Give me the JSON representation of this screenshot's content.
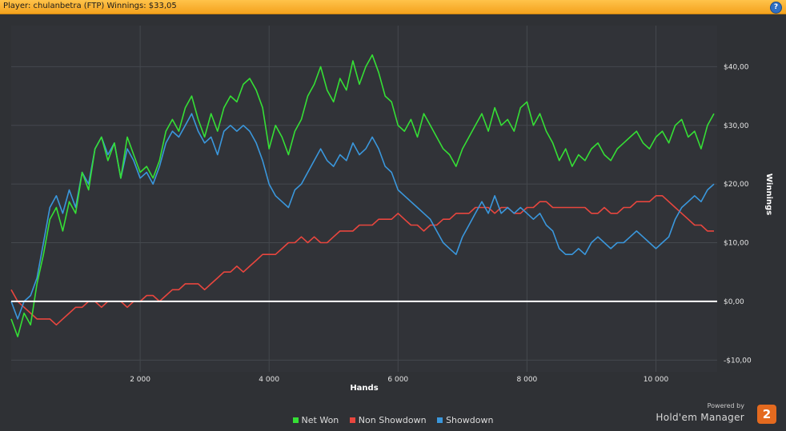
{
  "header": {
    "title": "Player: chulanbetra (FTP) Winnings: $33,05",
    "help_label": "?"
  },
  "branding": {
    "powered_by": "Powered by",
    "product": "Hold'em Manager",
    "logo_text": "2"
  },
  "chart_data": {
    "type": "line",
    "title": "",
    "xlabel": "Hands",
    "ylabel": "Winnings",
    "xlim": [
      0,
      10950
    ],
    "ylim": [
      -12,
      47
    ],
    "x_ticks": [
      2000,
      4000,
      6000,
      8000,
      10000
    ],
    "x_tick_labels": [
      "2 000",
      "4 000",
      "6 000",
      "8 000",
      "10 000"
    ],
    "y_ticks": [
      -10,
      0,
      10,
      20,
      30,
      40
    ],
    "y_tick_labels": [
      "-$10,00",
      "$0,00",
      "$10,00",
      "$20,00",
      "$30,00",
      "$40,00"
    ],
    "grid": true,
    "legend_position": "bottom",
    "zero_line_color": "#ffffff",
    "series": [
      {
        "name": "Net Won",
        "color": "#35df35",
        "x": [
          0,
          100,
          200,
          300,
          400,
          500,
          600,
          700,
          800,
          900,
          1000,
          1100,
          1200,
          1300,
          1400,
          1500,
          1600,
          1700,
          1800,
          1900,
          2000,
          2100,
          2200,
          2300,
          2400,
          2500,
          2600,
          2700,
          2800,
          2900,
          3000,
          3100,
          3200,
          3300,
          3400,
          3500,
          3600,
          3700,
          3800,
          3900,
          4000,
          4100,
          4200,
          4300,
          4400,
          4500,
          4600,
          4700,
          4800,
          4900,
          5000,
          5100,
          5200,
          5300,
          5400,
          5500,
          5600,
          5700,
          5800,
          5900,
          6000,
          6100,
          6200,
          6300,
          6400,
          6500,
          6600,
          6700,
          6800,
          6900,
          7000,
          7100,
          7200,
          7300,
          7400,
          7500,
          7600,
          7700,
          7800,
          7900,
          8000,
          8100,
          8200,
          8300,
          8400,
          8500,
          8600,
          8700,
          8800,
          8900,
          9000,
          9100,
          9200,
          9300,
          9400,
          9500,
          9600,
          9700,
          9800,
          9900,
          10000,
          10100,
          10200,
          10300,
          10400,
          10500,
          10600,
          10700,
          10800,
          10900
        ],
        "y": [
          -3,
          -6,
          -2,
          -4,
          3,
          8,
          14,
          16,
          12,
          17,
          15,
          22,
          19,
          26,
          28,
          24,
          27,
          21,
          28,
          25,
          22,
          23,
          21,
          24,
          29,
          31,
          29,
          33,
          35,
          31,
          28,
          32,
          29,
          33,
          35,
          34,
          37,
          38,
          36,
          33,
          26,
          30,
          28,
          25,
          29,
          31,
          35,
          37,
          40,
          36,
          34,
          38,
          36,
          41,
          37,
          40,
          42,
          39,
          35,
          34,
          30,
          29,
          31,
          28,
          32,
          30,
          28,
          26,
          25,
          23,
          26,
          28,
          30,
          32,
          29,
          33,
          30,
          31,
          29,
          33,
          34,
          30,
          32,
          29,
          27,
          24,
          26,
          23,
          25,
          24,
          26,
          27,
          25,
          24,
          26,
          27,
          28,
          29,
          27,
          26,
          28,
          29,
          27,
          30,
          31,
          28,
          29,
          26,
          30,
          32
        ]
      },
      {
        "name": "Non Showdown",
        "color": "#e8463e",
        "x": [
          0,
          100,
          200,
          300,
          400,
          500,
          600,
          700,
          800,
          900,
          1000,
          1100,
          1200,
          1300,
          1400,
          1500,
          1600,
          1700,
          1800,
          1900,
          2000,
          2100,
          2200,
          2300,
          2400,
          2500,
          2600,
          2700,
          2800,
          2900,
          3000,
          3100,
          3200,
          3300,
          3400,
          3500,
          3600,
          3700,
          3800,
          3900,
          4000,
          4100,
          4200,
          4300,
          4400,
          4500,
          4600,
          4700,
          4800,
          4900,
          5000,
          5100,
          5200,
          5300,
          5400,
          5500,
          5600,
          5700,
          5800,
          5900,
          6000,
          6100,
          6200,
          6300,
          6400,
          6500,
          6600,
          6700,
          6800,
          6900,
          7000,
          7100,
          7200,
          7300,
          7400,
          7500,
          7600,
          7700,
          7800,
          7900,
          8000,
          8100,
          8200,
          8300,
          8400,
          8500,
          8600,
          8700,
          8800,
          8900,
          9000,
          9100,
          9200,
          9300,
          9400,
          9500,
          9600,
          9700,
          9800,
          9900,
          10000,
          10100,
          10200,
          10300,
          10400,
          10500,
          10600,
          10700,
          10800,
          10900
        ],
        "y": [
          2,
          0,
          -1,
          -2,
          -3,
          -3,
          -3,
          -4,
          -3,
          -2,
          -1,
          -1,
          0,
          0,
          -1,
          0,
          0,
          0,
          -1,
          0,
          0,
          1,
          1,
          0,
          1,
          2,
          2,
          3,
          3,
          3,
          2,
          3,
          4,
          5,
          5,
          6,
          5,
          6,
          7,
          8,
          8,
          8,
          9,
          10,
          10,
          11,
          10,
          11,
          10,
          10,
          11,
          12,
          12,
          12,
          13,
          13,
          13,
          14,
          14,
          14,
          15,
          14,
          13,
          13,
          12,
          13,
          13,
          14,
          14,
          15,
          15,
          15,
          16,
          16,
          16,
          15,
          16,
          16,
          15,
          15,
          16,
          16,
          17,
          17,
          16,
          16,
          16,
          16,
          16,
          16,
          15,
          15,
          16,
          15,
          15,
          16,
          16,
          17,
          17,
          17,
          18,
          18,
          17,
          16,
          15,
          14,
          13,
          13,
          12,
          12
        ]
      },
      {
        "name": "Showdown",
        "color": "#3a97dc",
        "x": [
          0,
          100,
          200,
          300,
          400,
          500,
          600,
          700,
          800,
          900,
          1000,
          1100,
          1200,
          1300,
          1400,
          1500,
          1600,
          1700,
          1800,
          1900,
          2000,
          2100,
          2200,
          2300,
          2400,
          2500,
          2600,
          2700,
          2800,
          2900,
          3000,
          3100,
          3200,
          3300,
          3400,
          3500,
          3600,
          3700,
          3800,
          3900,
          4000,
          4100,
          4200,
          4300,
          4400,
          4500,
          4600,
          4700,
          4800,
          4900,
          5000,
          5100,
          5200,
          5300,
          5400,
          5500,
          5600,
          5700,
          5800,
          5900,
          6000,
          6100,
          6200,
          6300,
          6400,
          6500,
          6600,
          6700,
          6800,
          6900,
          7000,
          7100,
          7200,
          7300,
          7400,
          7500,
          7600,
          7700,
          7800,
          7900,
          8000,
          8100,
          8200,
          8300,
          8400,
          8500,
          8600,
          8700,
          8800,
          8900,
          9000,
          9100,
          9200,
          9300,
          9400,
          9500,
          9600,
          9700,
          9800,
          9900,
          10000,
          10100,
          10200,
          10300,
          10400,
          10500,
          10600,
          10700,
          10800,
          10900
        ],
        "y": [
          0,
          -3,
          0,
          1,
          4,
          10,
          16,
          18,
          15,
          19,
          16,
          22,
          20,
          26,
          28,
          25,
          27,
          21,
          26,
          24,
          21,
          22,
          20,
          23,
          27,
          29,
          28,
          30,
          32,
          29,
          27,
          28,
          25,
          29,
          30,
          29,
          30,
          29,
          27,
          24,
          20,
          18,
          17,
          16,
          19,
          20,
          22,
          24,
          26,
          24,
          23,
          25,
          24,
          27,
          25,
          26,
          28,
          26,
          23,
          22,
          19,
          18,
          17,
          16,
          15,
          14,
          12,
          10,
          9,
          8,
          11,
          13,
          15,
          17,
          15,
          18,
          15,
          16,
          15,
          16,
          15,
          14,
          15,
          13,
          12,
          9,
          8,
          8,
          9,
          8,
          10,
          11,
          10,
          9,
          10,
          10,
          11,
          12,
          11,
          10,
          9,
          10,
          11,
          14,
          16,
          17,
          18,
          17,
          19,
          20
        ]
      }
    ]
  }
}
